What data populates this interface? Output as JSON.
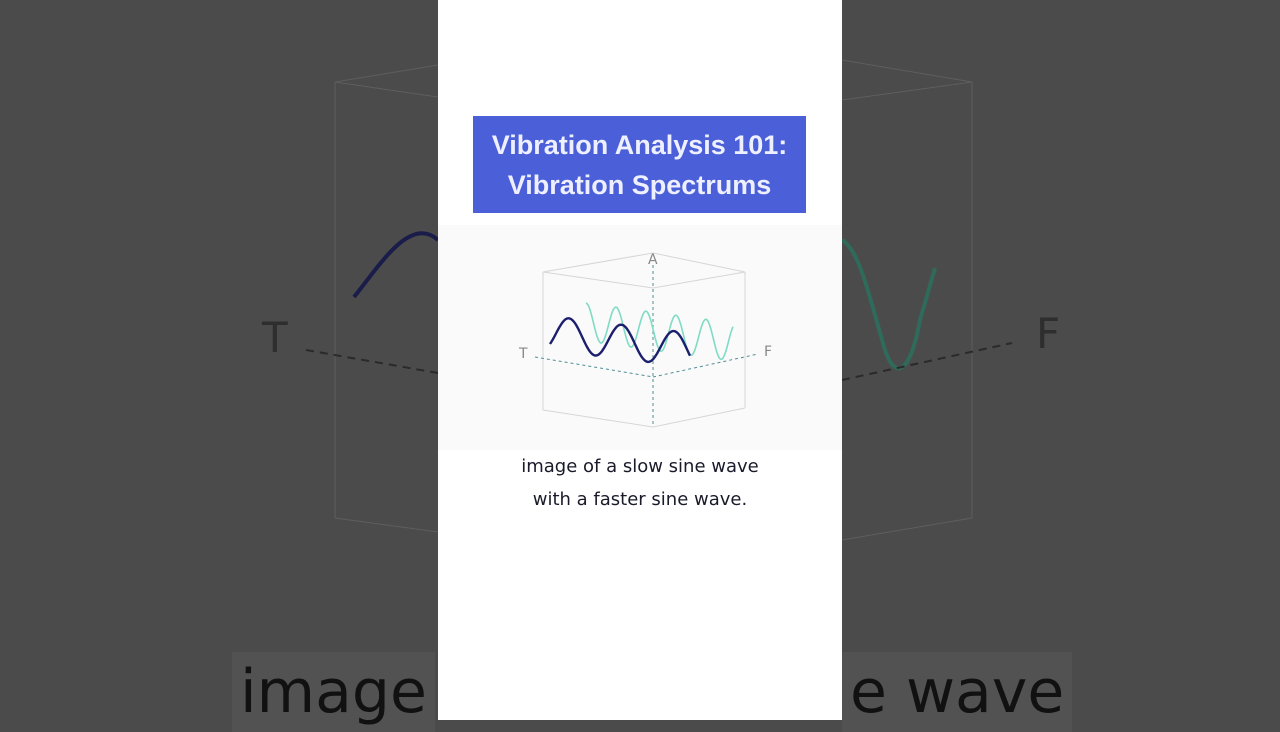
{
  "video": {
    "title_line1": "Vibration Analysis 101:",
    "title_line2": "Vibration Spectrums",
    "title_bg_color": "#4a5fd8",
    "diagram": {
      "axis_labels": {
        "amplitude": "A",
        "time": "T",
        "frequency": "F"
      },
      "slow_wave_color": "#1c1f6e",
      "fast_wave_color": "#7fdcc4"
    },
    "caption_line1": "image of a slow sine wave",
    "caption_line2": "with a faster sine wave."
  },
  "background": {
    "caption_left": "image",
    "caption_right": "e wave",
    "axis_left": "T",
    "axis_right": "F"
  }
}
